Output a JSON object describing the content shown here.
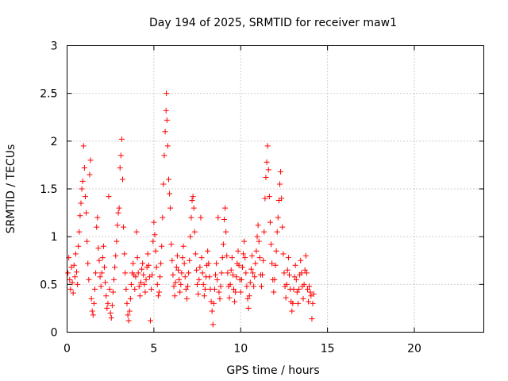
{
  "chart_data": {
    "type": "scatter",
    "title": "Day 194 of 2025, SRMTID for receiver maw1",
    "xlabel": "GPS time / hours",
    "ylabel": "SRMTID / TECUs",
    "xlim": [
      0,
      24
    ],
    "ylim": [
      0,
      3
    ],
    "xticks": [
      0,
      5,
      10,
      15,
      20
    ],
    "xtick_labels": [
      "0",
      "5",
      "10",
      "15",
      "20"
    ],
    "yticks": [
      0,
      0.5,
      1,
      1.5,
      2,
      2.5,
      3
    ],
    "ytick_labels": [
      "0",
      "0.5",
      "1",
      "1.5",
      "2",
      "2.5",
      "3"
    ],
    "grid": true,
    "marker": "+",
    "series": [
      {
        "name": "SRMTID",
        "color": "#ff0000",
        "points": [
          [
            0.05,
            0.62
          ],
          [
            0.1,
            0.78
          ],
          [
            0.15,
            0.55
          ],
          [
            0.2,
            0.45
          ],
          [
            0.25,
            0.68
          ],
          [
            0.3,
            0.52
          ],
          [
            0.35,
            0.41
          ],
          [
            0.4,
            0.7
          ],
          [
            0.45,
            0.58
          ],
          [
            0.5,
            0.82
          ],
          [
            0.55,
            0.63
          ],
          [
            0.6,
            0.5
          ],
          [
            0.65,
            0.9
          ],
          [
            0.7,
            1.05
          ],
          [
            0.75,
            1.22
          ],
          [
            0.8,
            1.35
          ],
          [
            0.85,
            1.5
          ],
          [
            0.9,
            1.58
          ],
          [
            0.95,
            1.95
          ],
          [
            1.0,
            1.72
          ],
          [
            1.05,
            1.42
          ],
          [
            1.1,
            1.25
          ],
          [
            1.15,
            0.95
          ],
          [
            1.2,
            0.72
          ],
          [
            1.25,
            0.55
          ],
          [
            1.3,
            1.65
          ],
          [
            1.35,
            1.8
          ],
          [
            1.4,
            0.35
          ],
          [
            1.45,
            0.22
          ],
          [
            1.5,
            0.18
          ],
          [
            1.55,
            0.3
          ],
          [
            1.6,
            0.45
          ],
          [
            1.65,
            0.62
          ],
          [
            1.7,
            1.1
          ],
          [
            1.75,
            1.2
          ],
          [
            1.8,
            0.88
          ],
          [
            1.85,
            0.75
          ],
          [
            1.9,
            0.58
          ],
          [
            1.95,
            0.48
          ],
          [
            2.0,
            0.62
          ],
          [
            2.05,
            0.78
          ],
          [
            2.1,
            0.9
          ],
          [
            2.15,
            0.68
          ],
          [
            2.2,
            0.52
          ],
          [
            2.25,
            0.38
          ],
          [
            2.3,
            0.25
          ],
          [
            2.35,
            0.3
          ],
          [
            2.4,
            1.42
          ],
          [
            2.45,
            0.45
          ],
          [
            2.5,
            0.2
          ],
          [
            2.55,
            0.15
          ],
          [
            2.6,
            0.28
          ],
          [
            2.65,
            0.42
          ],
          [
            2.7,
            0.55
          ],
          [
            2.75,
            0.68
          ],
          [
            2.8,
            0.8
          ],
          [
            2.85,
            0.95
          ],
          [
            2.9,
            1.12
          ],
          [
            2.95,
            1.25
          ],
          [
            3.0,
            1.3
          ],
          [
            3.05,
            1.72
          ],
          [
            3.1,
            1.85
          ],
          [
            3.15,
            2.02
          ],
          [
            3.2,
            1.6
          ],
          [
            3.25,
            1.1
          ],
          [
            3.3,
            0.82
          ],
          [
            3.35,
            0.62
          ],
          [
            3.4,
            0.45
          ],
          [
            3.45,
            0.3
          ],
          [
            3.5,
            0.18
          ],
          [
            3.55,
            0.12
          ],
          [
            3.6,
            0.22
          ],
          [
            3.65,
            0.35
          ],
          [
            3.7,
            0.5
          ],
          [
            3.75,
            0.62
          ],
          [
            3.8,
            0.72
          ],
          [
            3.85,
            0.6
          ],
          [
            3.9,
            0.45
          ],
          [
            3.95,
            0.58
          ],
          [
            4.0,
            1.05
          ],
          [
            4.05,
            0.78
          ],
          [
            4.1,
            0.62
          ],
          [
            4.15,
            0.48
          ],
          [
            4.2,
            0.38
          ],
          [
            4.25,
            0.52
          ],
          [
            4.3,
            0.66
          ],
          [
            4.35,
            0.72
          ],
          [
            4.4,
            0.6
          ],
          [
            4.45,
            0.5
          ],
          [
            4.5,
            0.42
          ],
          [
            4.55,
            0.55
          ],
          [
            4.6,
            0.68
          ],
          [
            4.65,
            0.82
          ],
          [
            4.7,
            0.7
          ],
          [
            4.75,
            0.58
          ],
          [
            4.8,
            0.12
          ],
          [
            4.85,
            0.45
          ],
          [
            4.9,
            0.6
          ],
          [
            4.95,
            0.95
          ],
          [
            5.0,
            1.15
          ],
          [
            5.05,
            1.02
          ],
          [
            5.1,
            0.85
          ],
          [
            5.15,
            0.68
          ],
          [
            5.2,
            0.5
          ],
          [
            5.25,
            0.38
          ],
          [
            5.3,
            0.42
          ],
          [
            5.35,
            0.58
          ],
          [
            5.4,
            0.72
          ],
          [
            5.45,
            0.9
          ],
          [
            5.5,
            1.2
          ],
          [
            5.55,
            1.55
          ],
          [
            5.6,
            1.85
          ],
          [
            5.65,
            2.1
          ],
          [
            5.7,
            2.32
          ],
          [
            5.72,
            2.5
          ],
          [
            5.75,
            2.22
          ],
          [
            5.8,
            1.95
          ],
          [
            5.85,
            1.6
          ],
          [
            5.9,
            1.45
          ],
          [
            5.95,
            1.3
          ],
          [
            6.0,
            0.92
          ],
          [
            6.05,
            0.75
          ],
          [
            6.1,
            0.6
          ],
          [
            6.15,
            0.48
          ],
          [
            6.2,
            0.38
          ],
          [
            6.25,
            0.52
          ],
          [
            6.3,
            0.68
          ],
          [
            6.35,
            0.8
          ],
          [
            6.4,
            0.65
          ],
          [
            6.45,
            0.55
          ],
          [
            6.5,
            0.42
          ],
          [
            6.55,
            0.5
          ],
          [
            6.6,
            0.62
          ],
          [
            6.65,
            0.78
          ],
          [
            6.7,
            0.9
          ],
          [
            6.75,
            0.72
          ],
          [
            6.8,
            0.58
          ],
          [
            6.85,
            0.45
          ],
          [
            6.9,
            0.35
          ],
          [
            6.95,
            0.48
          ],
          [
            7.0,
            0.62
          ],
          [
            7.05,
            0.75
          ],
          [
            7.1,
            1.0
          ],
          [
            7.15,
            1.2
          ],
          [
            7.2,
            1.38
          ],
          [
            7.25,
            1.42
          ],
          [
            7.3,
            1.3
          ],
          [
            7.35,
            1.05
          ],
          [
            7.4,
            0.82
          ],
          [
            7.45,
            0.65
          ],
          [
            7.5,
            0.5
          ],
          [
            7.55,
            0.4
          ],
          [
            7.6,
            0.55
          ],
          [
            7.65,
            0.68
          ],
          [
            7.7,
            1.2
          ],
          [
            7.75,
            0.78
          ],
          [
            7.8,
            0.62
          ],
          [
            7.85,
            0.5
          ],
          [
            7.9,
            0.38
          ],
          [
            7.95,
            0.45
          ],
          [
            8.0,
            0.58
          ],
          [
            8.05,
            0.7
          ],
          [
            8.1,
            0.85
          ],
          [
            8.15,
            0.72
          ],
          [
            8.2,
            0.58
          ],
          [
            8.25,
            0.45
          ],
          [
            8.3,
            0.32
          ],
          [
            8.35,
            0.22
          ],
          [
            8.4,
            0.08
          ],
          [
            8.45,
            0.3
          ],
          [
            8.5,
            0.45
          ],
          [
            8.55,
            0.6
          ],
          [
            8.6,
            0.72
          ],
          [
            8.65,
            0.55
          ],
          [
            8.7,
            1.2
          ],
          [
            8.75,
            0.42
          ],
          [
            8.8,
            0.35
          ],
          [
            8.85,
            0.48
          ],
          [
            8.9,
            0.62
          ],
          [
            8.95,
            0.78
          ],
          [
            9.0,
            0.92
          ],
          [
            9.05,
            1.18
          ],
          [
            9.1,
            1.3
          ],
          [
            9.15,
            1.05
          ],
          [
            9.2,
            0.8
          ],
          [
            9.25,
            0.62
          ],
          [
            9.3,
            0.48
          ],
          [
            9.35,
            0.36
          ],
          [
            9.4,
            0.5
          ],
          [
            9.45,
            0.65
          ],
          [
            9.5,
            0.78
          ],
          [
            9.55,
            0.6
          ],
          [
            9.6,
            0.45
          ],
          [
            9.65,
            0.32
          ],
          [
            9.7,
            0.42
          ],
          [
            9.75,
            0.58
          ],
          [
            9.8,
            0.72
          ],
          [
            9.85,
            0.85
          ],
          [
            9.9,
            0.7
          ],
          [
            9.95,
            0.55
          ],
          [
            10.0,
            0.42
          ],
          [
            10.05,
            0.55
          ],
          [
            10.1,
            0.68
          ],
          [
            10.15,
            0.82
          ],
          [
            10.2,
            0.95
          ],
          [
            10.25,
            0.78
          ],
          [
            10.3,
            0.62
          ],
          [
            10.35,
            0.48
          ],
          [
            10.4,
            0.35
          ],
          [
            10.45,
            0.25
          ],
          [
            10.5,
            0.38
          ],
          [
            10.55,
            0.52
          ],
          [
            10.6,
            0.66
          ],
          [
            10.65,
            0.8
          ],
          [
            10.7,
            0.62
          ],
          [
            10.75,
            0.48
          ],
          [
            10.8,
            0.58
          ],
          [
            10.85,
            0.72
          ],
          [
            10.9,
            0.85
          ],
          [
            10.95,
            1.0
          ],
          [
            11.0,
            1.12
          ],
          [
            11.05,
            0.95
          ],
          [
            11.1,
            0.78
          ],
          [
            11.15,
            0.6
          ],
          [
            11.2,
            0.48
          ],
          [
            11.25,
            0.6
          ],
          [
            11.3,
            0.75
          ],
          [
            11.35,
            1.05
          ],
          [
            11.4,
            1.4
          ],
          [
            11.45,
            1.62
          ],
          [
            11.5,
            1.78
          ],
          [
            11.55,
            1.95
          ],
          [
            11.6,
            1.7
          ],
          [
            11.65,
            1.42
          ],
          [
            11.7,
            1.15
          ],
          [
            11.75,
            0.92
          ],
          [
            11.8,
            0.72
          ],
          [
            11.85,
            0.55
          ],
          [
            11.9,
            0.42
          ],
          [
            11.95,
            0.55
          ],
          [
            12.0,
            0.7
          ],
          [
            12.05,
            0.85
          ],
          [
            12.1,
            1.05
          ],
          [
            12.15,
            1.2
          ],
          [
            12.2,
            1.38
          ],
          [
            12.25,
            1.55
          ],
          [
            12.3,
            1.68
          ],
          [
            12.35,
            1.4
          ],
          [
            12.4,
            1.1
          ],
          [
            12.45,
            0.82
          ],
          [
            12.5,
            0.62
          ],
          [
            12.55,
            0.48
          ],
          [
            12.6,
            0.36
          ],
          [
            12.65,
            0.5
          ],
          [
            12.7,
            0.65
          ],
          [
            12.75,
            0.78
          ],
          [
            12.8,
            0.6
          ],
          [
            12.85,
            0.45
          ],
          [
            12.9,
            0.32
          ],
          [
            12.95,
            0.22
          ],
          [
            13.0,
            0.3
          ],
          [
            13.05,
            0.45
          ],
          [
            13.1,
            0.58
          ],
          [
            13.15,
            0.7
          ],
          [
            13.2,
            0.55
          ],
          [
            13.25,
            0.42
          ],
          [
            13.3,
            0.3
          ],
          [
            13.35,
            0.45
          ],
          [
            13.4,
            0.6
          ],
          [
            13.45,
            0.75
          ],
          [
            13.5,
            0.62
          ],
          [
            13.55,
            0.48
          ],
          [
            13.6,
            0.35
          ],
          [
            13.65,
            0.5
          ],
          [
            13.7,
            0.65
          ],
          [
            13.75,
            0.8
          ],
          [
            13.8,
            0.62
          ],
          [
            13.85,
            0.45
          ],
          [
            13.9,
            0.32
          ],
          [
            13.95,
            0.48
          ],
          [
            14.0,
            0.42
          ],
          [
            14.05,
            0.38
          ],
          [
            14.1,
            0.14
          ],
          [
            14.15,
            0.3
          ],
          [
            14.2,
            0.4
          ]
        ]
      }
    ]
  }
}
